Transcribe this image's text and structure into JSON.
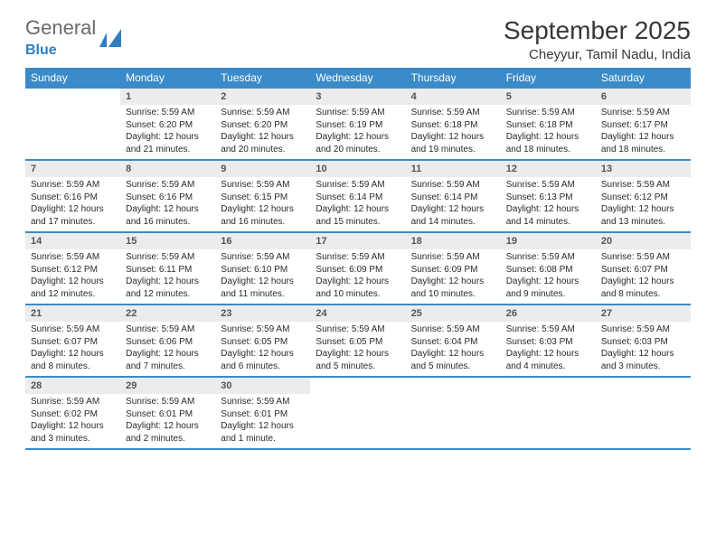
{
  "logo": {
    "text_general": "General",
    "text_blue": "Blue",
    "icon_color": "#2f7fc0"
  },
  "title": {
    "month": "September 2025",
    "location": "Cheyyur, Tamil Nadu, India"
  },
  "colors": {
    "header_bg": "#3b8bc9",
    "header_text": "#ffffff",
    "daynum_bg": "#ececec",
    "rule": "#3b8bc9",
    "body_text": "#2a2a2a"
  },
  "dow": [
    "Sunday",
    "Monday",
    "Tuesday",
    "Wednesday",
    "Thursday",
    "Friday",
    "Saturday"
  ],
  "weeks": [
    [
      {
        "num": "",
        "sunrise": "",
        "sunset": "",
        "daylight1": "",
        "daylight2": ""
      },
      {
        "num": "1",
        "sunrise": "Sunrise: 5:59 AM",
        "sunset": "Sunset: 6:20 PM",
        "daylight1": "Daylight: 12 hours",
        "daylight2": "and 21 minutes."
      },
      {
        "num": "2",
        "sunrise": "Sunrise: 5:59 AM",
        "sunset": "Sunset: 6:20 PM",
        "daylight1": "Daylight: 12 hours",
        "daylight2": "and 20 minutes."
      },
      {
        "num": "3",
        "sunrise": "Sunrise: 5:59 AM",
        "sunset": "Sunset: 6:19 PM",
        "daylight1": "Daylight: 12 hours",
        "daylight2": "and 20 minutes."
      },
      {
        "num": "4",
        "sunrise": "Sunrise: 5:59 AM",
        "sunset": "Sunset: 6:18 PM",
        "daylight1": "Daylight: 12 hours",
        "daylight2": "and 19 minutes."
      },
      {
        "num": "5",
        "sunrise": "Sunrise: 5:59 AM",
        "sunset": "Sunset: 6:18 PM",
        "daylight1": "Daylight: 12 hours",
        "daylight2": "and 18 minutes."
      },
      {
        "num": "6",
        "sunrise": "Sunrise: 5:59 AM",
        "sunset": "Sunset: 6:17 PM",
        "daylight1": "Daylight: 12 hours",
        "daylight2": "and 18 minutes."
      }
    ],
    [
      {
        "num": "7",
        "sunrise": "Sunrise: 5:59 AM",
        "sunset": "Sunset: 6:16 PM",
        "daylight1": "Daylight: 12 hours",
        "daylight2": "and 17 minutes."
      },
      {
        "num": "8",
        "sunrise": "Sunrise: 5:59 AM",
        "sunset": "Sunset: 6:16 PM",
        "daylight1": "Daylight: 12 hours",
        "daylight2": "and 16 minutes."
      },
      {
        "num": "9",
        "sunrise": "Sunrise: 5:59 AM",
        "sunset": "Sunset: 6:15 PM",
        "daylight1": "Daylight: 12 hours",
        "daylight2": "and 16 minutes."
      },
      {
        "num": "10",
        "sunrise": "Sunrise: 5:59 AM",
        "sunset": "Sunset: 6:14 PM",
        "daylight1": "Daylight: 12 hours",
        "daylight2": "and 15 minutes."
      },
      {
        "num": "11",
        "sunrise": "Sunrise: 5:59 AM",
        "sunset": "Sunset: 6:14 PM",
        "daylight1": "Daylight: 12 hours",
        "daylight2": "and 14 minutes."
      },
      {
        "num": "12",
        "sunrise": "Sunrise: 5:59 AM",
        "sunset": "Sunset: 6:13 PM",
        "daylight1": "Daylight: 12 hours",
        "daylight2": "and 14 minutes."
      },
      {
        "num": "13",
        "sunrise": "Sunrise: 5:59 AM",
        "sunset": "Sunset: 6:12 PM",
        "daylight1": "Daylight: 12 hours",
        "daylight2": "and 13 minutes."
      }
    ],
    [
      {
        "num": "14",
        "sunrise": "Sunrise: 5:59 AM",
        "sunset": "Sunset: 6:12 PM",
        "daylight1": "Daylight: 12 hours",
        "daylight2": "and 12 minutes."
      },
      {
        "num": "15",
        "sunrise": "Sunrise: 5:59 AM",
        "sunset": "Sunset: 6:11 PM",
        "daylight1": "Daylight: 12 hours",
        "daylight2": "and 12 minutes."
      },
      {
        "num": "16",
        "sunrise": "Sunrise: 5:59 AM",
        "sunset": "Sunset: 6:10 PM",
        "daylight1": "Daylight: 12 hours",
        "daylight2": "and 11 minutes."
      },
      {
        "num": "17",
        "sunrise": "Sunrise: 5:59 AM",
        "sunset": "Sunset: 6:09 PM",
        "daylight1": "Daylight: 12 hours",
        "daylight2": "and 10 minutes."
      },
      {
        "num": "18",
        "sunrise": "Sunrise: 5:59 AM",
        "sunset": "Sunset: 6:09 PM",
        "daylight1": "Daylight: 12 hours",
        "daylight2": "and 10 minutes."
      },
      {
        "num": "19",
        "sunrise": "Sunrise: 5:59 AM",
        "sunset": "Sunset: 6:08 PM",
        "daylight1": "Daylight: 12 hours",
        "daylight2": "and 9 minutes."
      },
      {
        "num": "20",
        "sunrise": "Sunrise: 5:59 AM",
        "sunset": "Sunset: 6:07 PM",
        "daylight1": "Daylight: 12 hours",
        "daylight2": "and 8 minutes."
      }
    ],
    [
      {
        "num": "21",
        "sunrise": "Sunrise: 5:59 AM",
        "sunset": "Sunset: 6:07 PM",
        "daylight1": "Daylight: 12 hours",
        "daylight2": "and 8 minutes."
      },
      {
        "num": "22",
        "sunrise": "Sunrise: 5:59 AM",
        "sunset": "Sunset: 6:06 PM",
        "daylight1": "Daylight: 12 hours",
        "daylight2": "and 7 minutes."
      },
      {
        "num": "23",
        "sunrise": "Sunrise: 5:59 AM",
        "sunset": "Sunset: 6:05 PM",
        "daylight1": "Daylight: 12 hours",
        "daylight2": "and 6 minutes."
      },
      {
        "num": "24",
        "sunrise": "Sunrise: 5:59 AM",
        "sunset": "Sunset: 6:05 PM",
        "daylight1": "Daylight: 12 hours",
        "daylight2": "and 5 minutes."
      },
      {
        "num": "25",
        "sunrise": "Sunrise: 5:59 AM",
        "sunset": "Sunset: 6:04 PM",
        "daylight1": "Daylight: 12 hours",
        "daylight2": "and 5 minutes."
      },
      {
        "num": "26",
        "sunrise": "Sunrise: 5:59 AM",
        "sunset": "Sunset: 6:03 PM",
        "daylight1": "Daylight: 12 hours",
        "daylight2": "and 4 minutes."
      },
      {
        "num": "27",
        "sunrise": "Sunrise: 5:59 AM",
        "sunset": "Sunset: 6:03 PM",
        "daylight1": "Daylight: 12 hours",
        "daylight2": "and 3 minutes."
      }
    ],
    [
      {
        "num": "28",
        "sunrise": "Sunrise: 5:59 AM",
        "sunset": "Sunset: 6:02 PM",
        "daylight1": "Daylight: 12 hours",
        "daylight2": "and 3 minutes."
      },
      {
        "num": "29",
        "sunrise": "Sunrise: 5:59 AM",
        "sunset": "Sunset: 6:01 PM",
        "daylight1": "Daylight: 12 hours",
        "daylight2": "and 2 minutes."
      },
      {
        "num": "30",
        "sunrise": "Sunrise: 5:59 AM",
        "sunset": "Sunset: 6:01 PM",
        "daylight1": "Daylight: 12 hours",
        "daylight2": "and 1 minute."
      },
      {
        "num": "",
        "sunrise": "",
        "sunset": "",
        "daylight1": "",
        "daylight2": ""
      },
      {
        "num": "",
        "sunrise": "",
        "sunset": "",
        "daylight1": "",
        "daylight2": ""
      },
      {
        "num": "",
        "sunrise": "",
        "sunset": "",
        "daylight1": "",
        "daylight2": ""
      },
      {
        "num": "",
        "sunrise": "",
        "sunset": "",
        "daylight1": "",
        "daylight2": ""
      }
    ]
  ]
}
